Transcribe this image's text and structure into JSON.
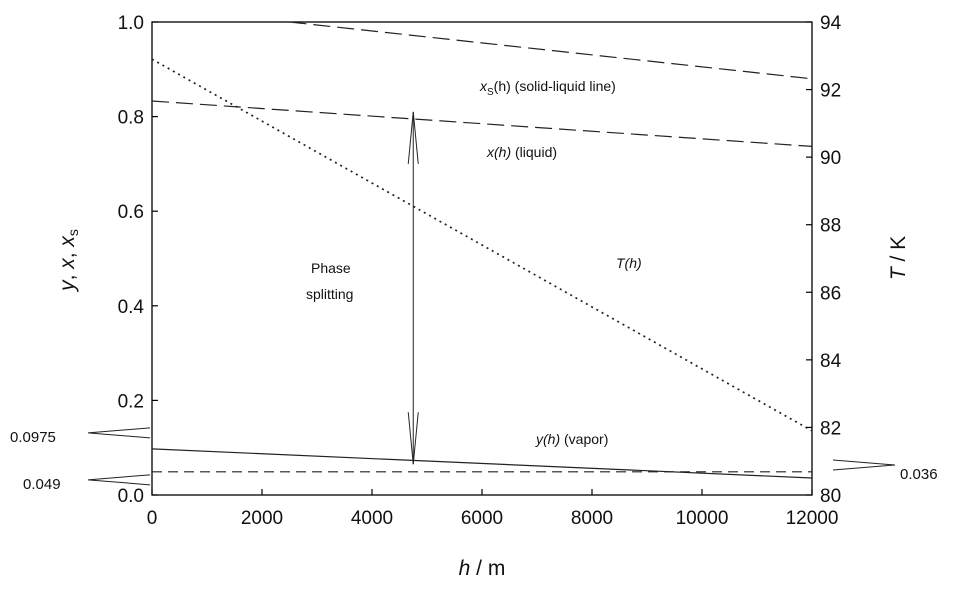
{
  "chart_data": {
    "type": "line",
    "xlabel": {
      "italic": "h",
      "rest": " / m"
    },
    "ylabel_left": {
      "parts": [
        "y",
        ", ",
        "x",
        ", ",
        "x",
        "s"
      ]
    },
    "ylabel_right": {
      "italic": "T",
      "rest": " / K"
    },
    "xlim": [
      0,
      12000
    ],
    "ylim_left": [
      0.0,
      1.0
    ],
    "ylim_right": [
      80,
      94
    ],
    "x_ticks": [
      0,
      2000,
      4000,
      6000,
      8000,
      10000,
      12000
    ],
    "x_tick_labels": [
      "0",
      "2000",
      "4000",
      "6000",
      "8000",
      "10000",
      "12000"
    ],
    "y_left_ticks": [
      0.0,
      0.2,
      0.4,
      0.6,
      0.8,
      1.0
    ],
    "y_left_tick_labels": [
      "0.0",
      "0.2",
      "0.4",
      "0.6",
      "0.8",
      "1.0"
    ],
    "y_right_ticks": [
      80,
      82,
      84,
      86,
      88,
      90,
      92,
      94
    ],
    "y_right_tick_labels": [
      "80",
      "82",
      "84",
      "86",
      "88",
      "90",
      "92",
      "94"
    ],
    "grid": false,
    "series": [
      {
        "name": "xS(h) (solid-liquid line)",
        "axis": "left",
        "style": "long-dash",
        "x": [
          2500,
          12000
        ],
        "y": [
          1.0,
          0.88
        ]
      },
      {
        "name": "x(h) (liquid)",
        "axis": "left",
        "style": "long-dash",
        "x": [
          0,
          12000
        ],
        "y": [
          0.833,
          0.737
        ]
      },
      {
        "name": "T(h)",
        "axis": "right",
        "style": "dotted",
        "x": [
          0,
          12000
        ],
        "y": [
          92.9,
          81.9
        ]
      },
      {
        "name": "y(h) (vapor)",
        "axis": "left",
        "style": "solid",
        "x": [
          0,
          12000
        ],
        "y": [
          0.0975,
          0.036
        ]
      },
      {
        "name": "",
        "axis": "left",
        "style": "short-dash",
        "x": [
          0,
          12000
        ],
        "y": [
          0.049,
          0.049
        ]
      }
    ],
    "labels": {
      "xs": {
        "pre": "x",
        "sub": "S",
        "post": "(h) (solid-liquid line)"
      },
      "x": {
        "italic": "x(h)",
        "rest": " (liquid)"
      },
      "T": "T(h)",
      "y": {
        "italic": "y(h)",
        "rest": " (vapor)"
      },
      "phase_line1": "Phase",
      "phase_line2": "splitting"
    },
    "annotations": {
      "phase_arrow": {
        "x": 4750,
        "y_top": 0.81,
        "y_bottom": 0.065
      },
      "left_values": [
        {
          "text": "0.0975",
          "value": 0.0975
        },
        {
          "text": "0.049",
          "value": 0.049
        }
      ],
      "right_values": [
        {
          "text": "0.036",
          "value": 0.036
        }
      ]
    }
  }
}
